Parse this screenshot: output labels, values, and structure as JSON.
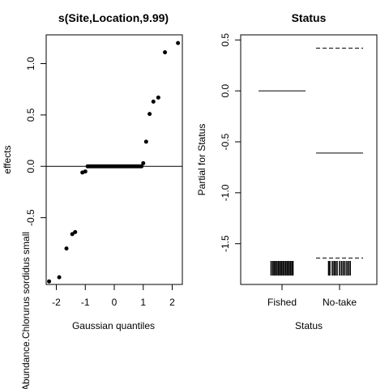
{
  "chart_data": [
    {
      "type": "scatter",
      "title": "s(Site,Location,9.99)",
      "xlabel": "Gaussian quantiles",
      "ylabel": "effects",
      "yaxis_overflow_label": "Abundance.Chlorurus sordidus small",
      "xlim": [
        -2.35,
        2.35
      ],
      "ylim": [
        -1.15,
        1.28
      ],
      "xticks": [
        -2,
        -1,
        0,
        1,
        2
      ],
      "xtick_labels": [
        "-2",
        "-1",
        "0",
        "1",
        "2"
      ],
      "yticks": [
        -0.5,
        0.0,
        0.5,
        1.0
      ],
      "ytick_labels": [
        "-0.5",
        "0.0",
        "0.5",
        "1.0"
      ],
      "hline": 0,
      "x": [
        -2.25,
        -1.9,
        -1.65,
        -1.45,
        -1.35,
        -1.1,
        -1.0,
        -0.92,
        -0.86,
        -0.8,
        -0.74,
        -0.68,
        -0.62,
        -0.56,
        -0.5,
        -0.44,
        -0.38,
        -0.32,
        -0.26,
        -0.2,
        -0.14,
        -0.08,
        -0.02,
        0.04,
        0.1,
        0.16,
        0.22,
        0.28,
        0.34,
        0.4,
        0.46,
        0.52,
        0.58,
        0.64,
        0.7,
        0.76,
        0.82,
        0.88,
        0.94,
        1.0,
        1.1,
        1.22,
        1.35,
        1.52,
        1.75,
        2.2
      ],
      "y": [
        -1.12,
        -1.08,
        -0.8,
        -0.66,
        -0.64,
        -0.06,
        -0.05,
        0.0,
        0.0,
        0.0,
        0.0,
        0.0,
        0.0,
        0.0,
        0.0,
        0.0,
        0.0,
        0.0,
        0.0,
        0.0,
        0.0,
        0.0,
        0.0,
        0.0,
        0.0,
        0.0,
        0.0,
        0.0,
        0.0,
        0.0,
        0.0,
        0.0,
        0.0,
        0.0,
        0.0,
        0.0,
        0.0,
        0.0,
        0.0,
        0.03,
        0.24,
        0.51,
        0.63,
        0.67,
        1.11,
        1.2
      ]
    },
    {
      "type": "termplot",
      "title": "Status",
      "xlabel": "Status",
      "ylabel": "Partial for Status",
      "categories": [
        "Fished",
        "No-take"
      ],
      "ylim": [
        -1.9,
        0.55
      ],
      "yticks": [
        -1.5,
        -1.0,
        -0.5,
        0.0,
        0.5
      ],
      "ytick_labels": [
        "-1.5",
        "-1.0",
        "-0.5",
        "0.0",
        "0.5"
      ],
      "fit": [
        0.0,
        -0.61
      ],
      "upper_band": [
        null,
        0.42
      ],
      "lower_band": [
        null,
        -1.64
      ],
      "rug_fished_x": [
        0.05,
        0.12,
        0.18,
        0.24,
        0.3,
        0.36,
        0.42,
        0.48,
        0.54,
        0.6,
        0.66,
        0.72,
        0.78,
        0.84,
        0.9,
        0.95
      ],
      "rug_notake_x": [
        0.05,
        0.1,
        0.2,
        0.27,
        0.33,
        0.4,
        0.5,
        0.58,
        0.65,
        0.72,
        0.8,
        0.87,
        0.94
      ]
    }
  ]
}
